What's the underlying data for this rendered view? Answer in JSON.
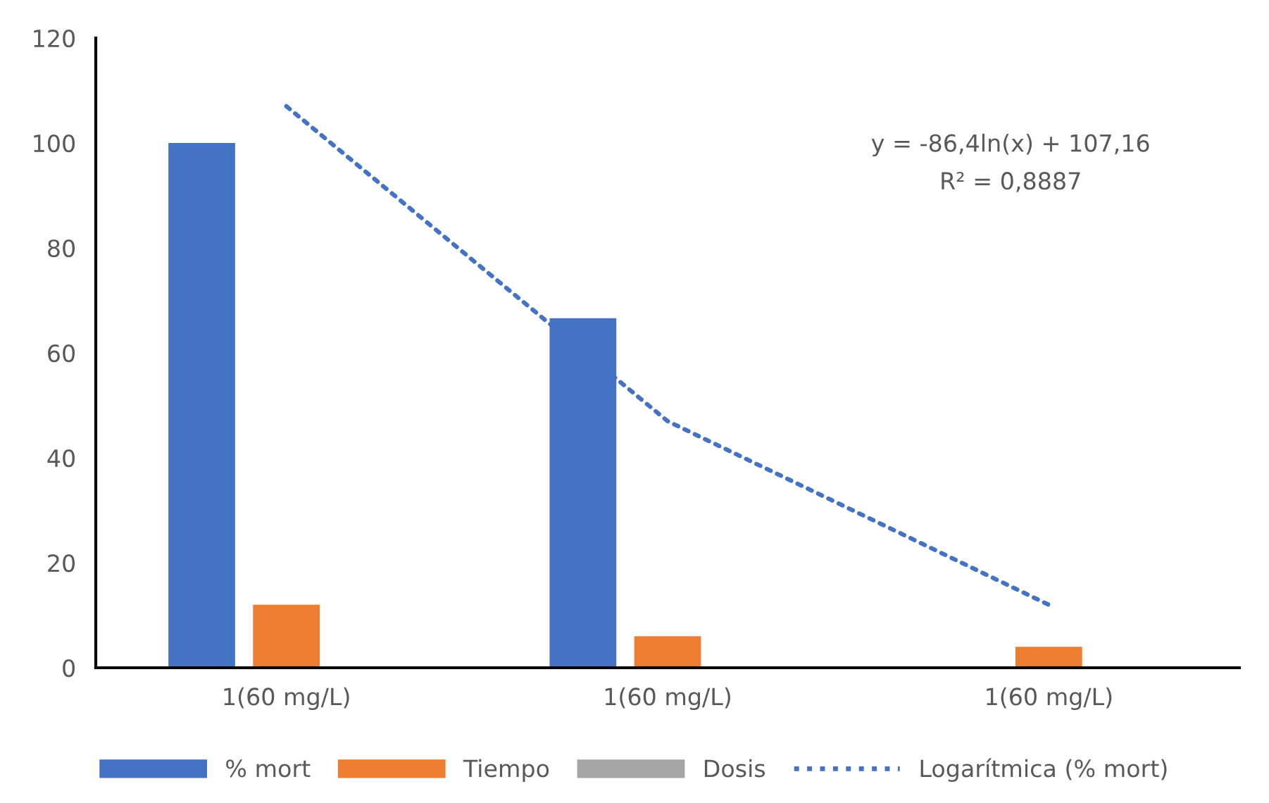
{
  "chart_data": {
    "type": "bar",
    "categories": [
      "1(60 mg/L)",
      "1(60 mg/L)",
      "1(60 mg/L)"
    ],
    "series": [
      {
        "name": "% mort",
        "color": "#4472c4",
        "values": [
          100,
          66.6,
          0
        ]
      },
      {
        "name": "Tiempo",
        "color": "#ed7d31",
        "values": [
          12,
          6,
          4
        ]
      },
      {
        "name": "Dosis",
        "color": "#a5a5a5",
        "values": [
          null,
          null,
          null
        ]
      },
      {
        "name": "Logarítmica (% mort)",
        "type": "line",
        "color": "#4472c4",
        "line_style": "dotted",
        "values": [
          107,
          47,
          12
        ]
      }
    ],
    "ylim": [
      0,
      120
    ],
    "yticks": [
      0,
      20,
      40,
      60,
      80,
      100,
      120
    ],
    "annotations": [
      "y = -86,4ln(x) + 107,16",
      "R² = 0,8887"
    ],
    "legend": "bottom",
    "grid": false
  }
}
